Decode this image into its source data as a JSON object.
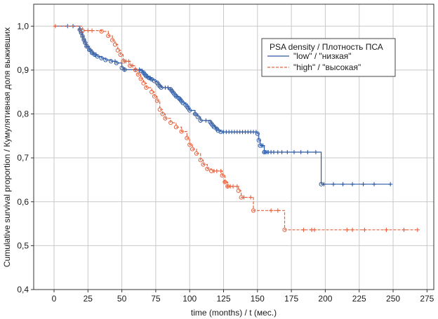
{
  "chart_data": {
    "type": "line",
    "subtype": "kaplan-meier step",
    "xlabel": "time (months) / t (мес.)",
    "ylabel": "Cumulative survival proportion / Кумулятивная доля выживших",
    "xlim": [
      -15,
      280
    ],
    "ylim": [
      0.4,
      1.05
    ],
    "x_ticks": [
      0,
      25,
      50,
      75,
      100,
      125,
      150,
      175,
      200,
      225,
      250,
      275
    ],
    "y_ticks": [
      0.4,
      0.5,
      0.6,
      0.7,
      0.8,
      0.9,
      1.0
    ],
    "y_tick_labels": [
      "0,4",
      "0,5",
      "0,6",
      "0,7",
      "0,8",
      "0,9",
      "1,0"
    ],
    "grid": true,
    "legend": {
      "title": "PSA density / Плотность ПСА",
      "placement": "top-right"
    },
    "series": [
      {
        "name": "\"low\" / \"низкая\"",
        "color": "#2f5aa3",
        "dash": "solid",
        "steps": [
          [
            0,
            1.0
          ],
          [
            18,
            1.0
          ],
          [
            19,
            0.992
          ],
          [
            20,
            0.985
          ],
          [
            21,
            0.977
          ],
          [
            22,
            0.969
          ],
          [
            23,
            0.962
          ],
          [
            24,
            0.954
          ],
          [
            26,
            0.946
          ],
          [
            28,
            0.939
          ],
          [
            30,
            0.935
          ],
          [
            32,
            0.931
          ],
          [
            35,
            0.927
          ],
          [
            38,
            0.923
          ],
          [
            42,
            0.92
          ],
          [
            46,
            0.916
          ],
          [
            50,
            0.905
          ],
          [
            52,
            0.901
          ],
          [
            64,
            0.898
          ],
          [
            66,
            0.894
          ],
          [
            67,
            0.89
          ],
          [
            68,
            0.886
          ],
          [
            70,
            0.882
          ],
          [
            72,
            0.879
          ],
          [
            74,
            0.875
          ],
          [
            76,
            0.871
          ],
          [
            77,
            0.867
          ],
          [
            78,
            0.863
          ],
          [
            79,
            0.86
          ],
          [
            86,
            0.856
          ],
          [
            87,
            0.852
          ],
          [
            88,
            0.848
          ],
          [
            89,
            0.844
          ],
          [
            90,
            0.84
          ],
          [
            92,
            0.836
          ],
          [
            93,
            0.833
          ],
          [
            94,
            0.829
          ],
          [
            95,
            0.825
          ],
          [
            97,
            0.821
          ],
          [
            98,
            0.817
          ],
          [
            99,
            0.813
          ],
          [
            100,
            0.808
          ],
          [
            104,
            0.8
          ],
          [
            106,
            0.793
          ],
          [
            108,
            0.785
          ],
          [
            115,
            0.782
          ],
          [
            116,
            0.778
          ],
          [
            117,
            0.774
          ],
          [
            118,
            0.77
          ],
          [
            120,
            0.766
          ],
          [
            121,
            0.762
          ],
          [
            123,
            0.759
          ],
          [
            150,
            0.755
          ],
          [
            151,
            0.74
          ],
          [
            152,
            0.728
          ],
          [
            155,
            0.713
          ],
          [
            197,
            0.64
          ],
          [
            248,
            0.64
          ]
        ],
        "censored_x": [
          10,
          14,
          19,
          20,
          21,
          22,
          23,
          24,
          25,
          26,
          27,
          28,
          29,
          30,
          31,
          45,
          52,
          60,
          63,
          65,
          66,
          67,
          68,
          69,
          70,
          71,
          72,
          82,
          84,
          86,
          87,
          90,
          91,
          93,
          104,
          112,
          119,
          120,
          125,
          127,
          129,
          131,
          133,
          135,
          137,
          139,
          141,
          143,
          145,
          147,
          149,
          153,
          154,
          155,
          156,
          157,
          158,
          160,
          162,
          165,
          168,
          172,
          177,
          182,
          187,
          193,
          199,
          206,
          213,
          220,
          228,
          236,
          248
        ]
      },
      {
        "name": "\"high\" / \"высокая\"",
        "color": "#e8613c",
        "dash": "dashed",
        "steps": [
          [
            0,
            1.0
          ],
          [
            20,
            1.0
          ],
          [
            21,
            0.99
          ],
          [
            35,
            0.988
          ],
          [
            40,
            0.978
          ],
          [
            43,
            0.968
          ],
          [
            45,
            0.958
          ],
          [
            47,
            0.945
          ],
          [
            49,
            0.935
          ],
          [
            51,
            0.92
          ],
          [
            56,
            0.91
          ],
          [
            60,
            0.9
          ],
          [
            62,
            0.89
          ],
          [
            64,
            0.88
          ],
          [
            66,
            0.87
          ],
          [
            68,
            0.86
          ],
          [
            72,
            0.85
          ],
          [
            74,
            0.84
          ],
          [
            76,
            0.83
          ],
          [
            78,
            0.81
          ],
          [
            80,
            0.8
          ],
          [
            82,
            0.79
          ],
          [
            86,
            0.78
          ],
          [
            90,
            0.77
          ],
          [
            94,
            0.76
          ],
          [
            98,
            0.745
          ],
          [
            100,
            0.73
          ],
          [
            102,
            0.72
          ],
          [
            105,
            0.71
          ],
          [
            108,
            0.695
          ],
          [
            110,
            0.685
          ],
          [
            113,
            0.675
          ],
          [
            116,
            0.67
          ],
          [
            124,
            0.66
          ],
          [
            126,
            0.645
          ],
          [
            128,
            0.635
          ],
          [
            136,
            0.625
          ],
          [
            138,
            0.61
          ],
          [
            147,
            0.58
          ],
          [
            163,
            0.58
          ],
          [
            170,
            0.536
          ],
          [
            267,
            0.536
          ]
        ],
        "censored_x": [
          1,
          25,
          28,
          52,
          53,
          55,
          58,
          118,
          120,
          123,
          126,
          128,
          130,
          132,
          135,
          140,
          145,
          160,
          165,
          184,
          190,
          192,
          216,
          220,
          229,
          245,
          258,
          268
        ]
      }
    ]
  }
}
